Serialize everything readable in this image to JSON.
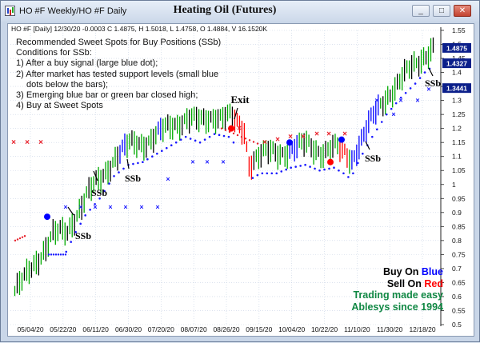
{
  "window": {
    "title": "HO #F Weekly/HO #F Daily",
    "chart_title": "Heating Oil (Futures)",
    "minimize_glyph": "_",
    "maximize_glyph": "□",
    "close_glyph": "✕"
  },
  "info_line": "HO #F [Daily] 12/30/20 -0.0003 C 1.4875, H 1.5018, L 1.4758, O 1.4884, V 16.1520K",
  "notes": [
    "Recommended Sweet Spots for Buy Positions (SSb)",
    "Conditions for SSb:",
    "1) After a buy signal (large blue dot);",
    "2) After market has tested support levels (small blue",
    "dots below the bars);",
    "3) Emerging blue bar or green bar closed high;",
    "4) Buy at Sweet Spots"
  ],
  "annotations": {
    "ssb": "SSb",
    "exit": "Exit"
  },
  "branding": {
    "buy_prefix": "Buy On ",
    "buy_color_word": "Blue",
    "sell_prefix": "Sell On ",
    "sell_color_word": "Red",
    "line1": "Trading made easy",
    "line2": "Ablesys since 1994"
  },
  "colors": {
    "up_bar": "#00aa00",
    "bull_bar": "#0000ff",
    "bear_bar": "#ff0000",
    "support_dots": "#1a1aff",
    "resistance_x": "#e8202a",
    "brand_green": "#118844"
  },
  "price_tags": [
    "1.4875",
    "1.4327",
    "1.3441"
  ],
  "chart_data": {
    "type": "bar",
    "y_axis_ticks": [
      "1.55",
      "1.5",
      "1.45",
      "1.4",
      "1.35",
      "1.3",
      "1.25",
      "1.2",
      "1.15",
      "1.1",
      "1.05",
      "1",
      "0.95",
      "0.9",
      "0.85",
      "0.8",
      "0.75",
      "0.7",
      "0.65",
      "0.6",
      "0.55",
      "0.5"
    ],
    "x_axis_labels": [
      "05/04/20",
      "05/22/20",
      "06/11/20",
      "06/30/20",
      "07/20/20",
      "08/07/20",
      "08/26/20",
      "09/15/20",
      "10/04/20",
      "10/22/20",
      "11/10/20",
      "11/30/20",
      "12/18/20"
    ],
    "ylim": [
      0.5,
      1.55
    ],
    "grid": true
  }
}
